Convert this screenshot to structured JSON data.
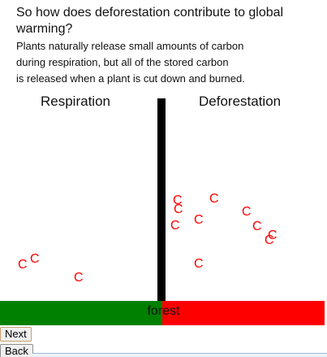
{
  "question": "So how does deforestation contribute to global warming?",
  "paragraph": {
    "lines": [
      "Plants naturally release small amounts of carbon",
      "during respiration, but all of the stored carbon",
      "is released when a plant is cut down and burned."
    ]
  },
  "columns": {
    "left_label": "Respiration",
    "right_label": "Deforestation"
  },
  "carbon_symbol": "C",
  "bar": {
    "label": "forest",
    "left_color": "#008000",
    "right_color": "#ff0000"
  },
  "buttons": {
    "next_label": "Next",
    "back_label": "Back"
  }
}
